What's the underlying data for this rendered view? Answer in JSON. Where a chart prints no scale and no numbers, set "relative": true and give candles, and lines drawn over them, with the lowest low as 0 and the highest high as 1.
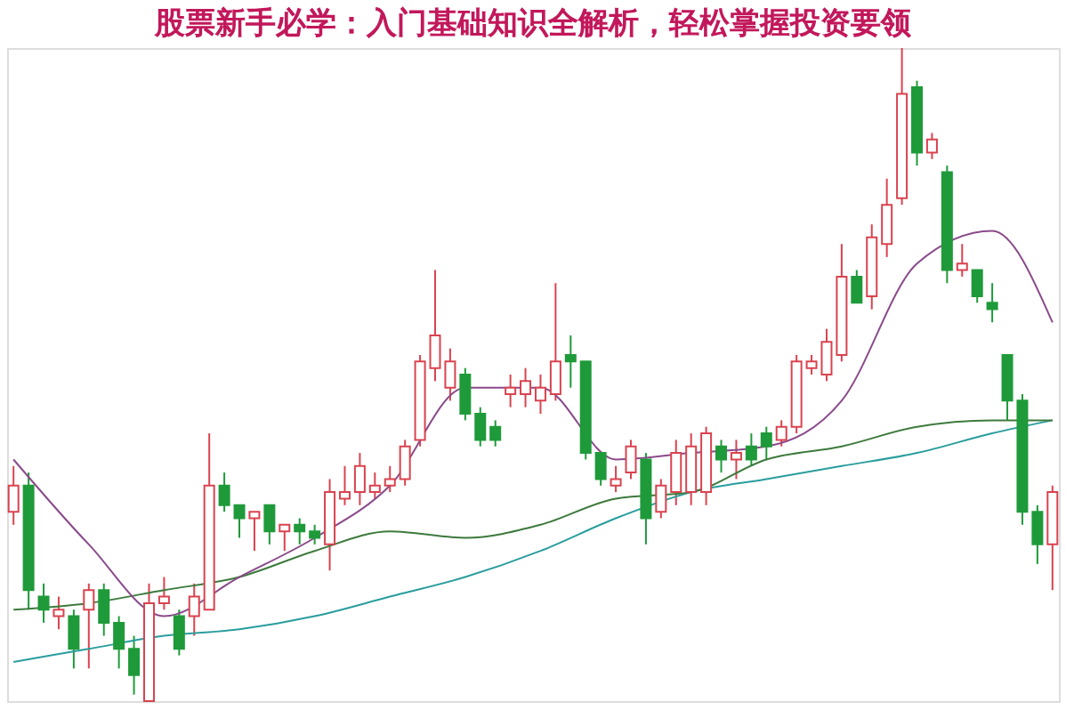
{
  "chart_data": {
    "type": "candlestick",
    "title": "股票新手必学：入门基础知识全解析，轻松掌握投资要领",
    "relative": true,
    "tick_labels": false,
    "categories": [
      null,
      null,
      null,
      null,
      null,
      null,
      null,
      null,
      null,
      null,
      null,
      null,
      null,
      null,
      null,
      null,
      null,
      null,
      null,
      null,
      null,
      null,
      null,
      null,
      null,
      null,
      null,
      null,
      null,
      null,
      null,
      null,
      null,
      null,
      null,
      null,
      null,
      null,
      null,
      null,
      null,
      null,
      null,
      null,
      null,
      null,
      null,
      null,
      null,
      null,
      null,
      null,
      null,
      null,
      null,
      null,
      null,
      null,
      null,
      null,
      null,
      null,
      null,
      null,
      null,
      null,
      null,
      null,
      null,
      null
    ],
    "ohlc": [
      [
        0.29,
        0.36,
        0.27,
        0.33
      ],
      [
        0.33,
        0.35,
        0.14,
        0.17
      ],
      [
        0.16,
        0.18,
        0.12,
        0.14
      ],
      [
        0.13,
        0.16,
        0.11,
        0.14
      ],
      [
        0.13,
        0.14,
        0.05,
        0.08
      ],
      [
        0.14,
        0.18,
        0.05,
        0.17
      ],
      [
        0.17,
        0.18,
        0.1,
        0.12
      ],
      [
        0.12,
        0.13,
        0.05,
        0.08
      ],
      [
        0.08,
        0.1,
        0.01,
        0.04
      ],
      [
        0.0,
        0.18,
        0.0,
        0.15
      ],
      [
        0.15,
        0.19,
        0.14,
        0.16
      ],
      [
        0.13,
        0.14,
        0.07,
        0.08
      ],
      [
        0.13,
        0.18,
        0.1,
        0.16
      ],
      [
        0.14,
        0.41,
        0.14,
        0.33
      ],
      [
        0.33,
        0.35,
        0.29,
        0.3
      ],
      [
        0.3,
        0.3,
        0.25,
        0.28
      ],
      [
        0.28,
        0.29,
        0.23,
        0.29
      ],
      [
        0.3,
        0.3,
        0.24,
        0.26
      ],
      [
        0.26,
        0.27,
        0.23,
        0.27
      ],
      [
        0.27,
        0.28,
        0.24,
        0.26
      ],
      [
        0.26,
        0.27,
        0.24,
        0.25
      ],
      [
        0.24,
        0.34,
        0.2,
        0.32
      ],
      [
        0.31,
        0.36,
        0.3,
        0.32
      ],
      [
        0.32,
        0.38,
        0.3,
        0.36
      ],
      [
        0.32,
        0.35,
        0.31,
        0.33
      ],
      [
        0.33,
        0.36,
        0.32,
        0.34
      ],
      [
        0.34,
        0.4,
        0.33,
        0.39
      ],
      [
        0.4,
        0.53,
        0.39,
        0.52
      ],
      [
        0.51,
        0.66,
        0.49,
        0.56
      ],
      [
        0.48,
        0.54,
        0.46,
        0.52
      ],
      [
        0.5,
        0.51,
        0.43,
        0.44
      ],
      [
        0.44,
        0.45,
        0.39,
        0.4
      ],
      [
        0.42,
        0.43,
        0.39,
        0.4
      ],
      [
        0.47,
        0.5,
        0.45,
        0.48
      ],
      [
        0.47,
        0.51,
        0.45,
        0.49
      ],
      [
        0.46,
        0.5,
        0.44,
        0.48
      ],
      [
        0.47,
        0.64,
        0.46,
        0.52
      ],
      [
        0.53,
        0.56,
        0.48,
        0.52
      ],
      [
        0.52,
        0.52,
        0.37,
        0.38
      ],
      [
        0.38,
        0.38,
        0.33,
        0.34
      ],
      [
        0.33,
        0.36,
        0.32,
        0.34
      ],
      [
        0.35,
        0.4,
        0.34,
        0.39
      ],
      [
        0.37,
        0.38,
        0.24,
        0.28
      ],
      [
        0.29,
        0.34,
        0.28,
        0.33
      ],
      [
        0.32,
        0.4,
        0.3,
        0.38
      ],
      [
        0.32,
        0.41,
        0.3,
        0.39
      ],
      [
        0.32,
        0.42,
        0.3,
        0.41
      ],
      [
        0.39,
        0.4,
        0.35,
        0.37
      ],
      [
        0.37,
        0.4,
        0.34,
        0.38
      ],
      [
        0.39,
        0.41,
        0.36,
        0.37
      ],
      [
        0.41,
        0.42,
        0.37,
        0.39
      ],
      [
        0.4,
        0.43,
        0.39,
        0.42
      ],
      [
        0.42,
        0.53,
        0.41,
        0.52
      ],
      [
        0.51,
        0.53,
        0.5,
        0.52
      ],
      [
        0.5,
        0.57,
        0.49,
        0.55
      ],
      [
        0.53,
        0.7,
        0.52,
        0.65
      ],
      [
        0.65,
        0.66,
        0.61,
        0.61
      ],
      [
        0.62,
        0.73,
        0.6,
        0.71
      ],
      [
        0.7,
        0.8,
        0.68,
        0.76
      ],
      [
        0.77,
        1.0,
        0.76,
        0.93
      ],
      [
        0.94,
        0.95,
        0.82,
        0.84
      ],
      [
        0.84,
        0.87,
        0.83,
        0.86
      ],
      [
        0.81,
        0.82,
        0.64,
        0.66
      ],
      [
        0.66,
        0.7,
        0.65,
        0.67
      ],
      [
        0.66,
        0.66,
        0.61,
        0.62
      ],
      [
        0.61,
        0.64,
        0.58,
        0.6
      ],
      [
        0.53,
        0.53,
        0.43,
        0.46
      ],
      [
        0.46,
        0.47,
        0.27,
        0.29
      ],
      [
        0.29,
        0.3,
        0.21,
        0.24
      ],
      [
        0.24,
        0.33,
        0.17,
        0.32
      ]
    ],
    "series": [
      {
        "type": "line",
        "color": "#2a9d9d",
        "values": [
          0.06,
          null,
          null,
          null,
          null,
          0.08,
          null,
          null,
          null,
          null,
          0.1,
          null,
          null,
          null,
          null,
          0.11,
          null,
          null,
          null,
          null,
          0.13,
          null,
          null,
          null,
          null,
          0.16,
          null,
          null,
          null,
          null,
          0.19,
          null,
          null,
          null,
          null,
          0.23,
          null,
          null,
          null,
          null,
          0.28,
          null,
          null,
          null,
          null,
          0.32,
          null,
          null,
          null,
          null,
          0.34,
          null,
          null,
          null,
          null,
          0.36,
          null,
          null,
          null,
          null,
          0.38,
          null,
          null,
          null,
          null,
          0.41,
          null,
          null,
          null,
          0.43
        ]
      },
      {
        "type": "line",
        "color": "#3d7a3d",
        "values": [
          0.14,
          null,
          null,
          null,
          null,
          0.15,
          null,
          null,
          null,
          null,
          0.17,
          null,
          null,
          null,
          null,
          0.19,
          null,
          null,
          null,
          null,
          0.23,
          null,
          null,
          null,
          null,
          0.26,
          null,
          null,
          null,
          null,
          0.25,
          null,
          null,
          null,
          null,
          0.27,
          null,
          null,
          null,
          null,
          0.31,
          null,
          null,
          null,
          null,
          0.32,
          null,
          null,
          null,
          null,
          0.37,
          null,
          null,
          null,
          null,
          0.39,
          null,
          null,
          null,
          null,
          0.42,
          null,
          null,
          null,
          null,
          0.43,
          null,
          null,
          null,
          0.43
        ]
      },
      {
        "type": "line",
        "color": "#8a4a8a",
        "values": [
          0.37,
          null,
          null,
          null,
          null,
          0.24,
          null,
          null,
          null,
          null,
          0.13,
          null,
          null,
          null,
          null,
          0.19,
          null,
          null,
          null,
          null,
          0.25,
          null,
          null,
          null,
          null,
          0.33,
          null,
          null,
          null,
          null,
          0.48,
          null,
          null,
          null,
          null,
          0.48,
          null,
          null,
          null,
          null,
          0.37,
          null,
          null,
          null,
          null,
          0.38,
          null,
          null,
          null,
          null,
          0.39,
          null,
          null,
          null,
          null,
          0.46,
          null,
          null,
          null,
          null,
          0.67,
          null,
          null,
          null,
          null,
          0.72,
          null,
          null,
          null,
          0.58
        ]
      }
    ]
  }
}
